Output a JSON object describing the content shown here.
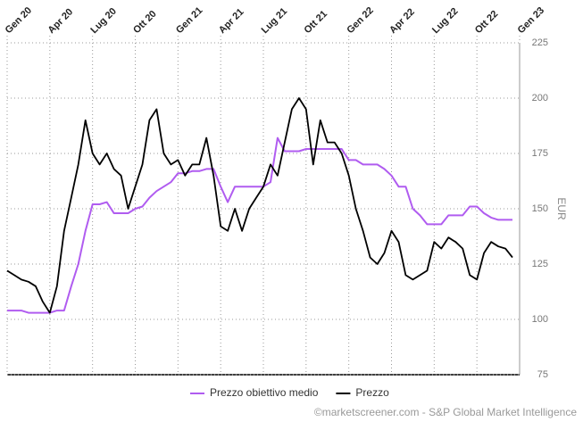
{
  "chart_data": {
    "type": "line",
    "categories": [
      "Gen 20",
      null,
      null,
      null,
      null,
      null,
      "Apr 20",
      null,
      null,
      null,
      null,
      null,
      "Lug 20",
      null,
      null,
      null,
      null,
      null,
      "Ott 20",
      null,
      null,
      null,
      null,
      null,
      "Gen 21",
      null,
      null,
      null,
      null,
      null,
      "Apr 21",
      null,
      null,
      null,
      null,
      null,
      "Lug 21",
      null,
      null,
      null,
      null,
      null,
      "Ott 21",
      null,
      null,
      null,
      null,
      null,
      "Gen 22",
      null,
      null,
      null,
      null,
      null,
      "Apr 22",
      null,
      null,
      null,
      null,
      null,
      "Lug 22",
      null,
      null,
      null,
      null,
      null,
      "Ott 22",
      null,
      null,
      null,
      null,
      null,
      "Gen 23"
    ],
    "series": [
      {
        "name": "Prezzo obiettivo medio",
        "color": "#b05cf0",
        "values": [
          104,
          104,
          104,
          103,
          103,
          103,
          103,
          104,
          104,
          115,
          125,
          140,
          152,
          152,
          153,
          148,
          148,
          148,
          150,
          151,
          155,
          158,
          160,
          162,
          166,
          166,
          167,
          167,
          168,
          168,
          160,
          153,
          160,
          160,
          160,
          160,
          160,
          162,
          182,
          176,
          176,
          176,
          177,
          177,
          177,
          177,
          177,
          177,
          172,
          172,
          170,
          170,
          170,
          168,
          165,
          160,
          160,
          150,
          147,
          143,
          143,
          143,
          147,
          147,
          147,
          151,
          151,
          148,
          146,
          145,
          145,
          145,
          null
        ]
      },
      {
        "name": "Prezzo",
        "color": "#000000",
        "values": [
          122,
          120,
          118,
          117,
          115,
          108,
          103,
          115,
          140,
          155,
          170,
          190,
          175,
          170,
          175,
          168,
          165,
          150,
          160,
          170,
          190,
          195,
          175,
          170,
          172,
          165,
          170,
          170,
          182,
          165,
          142,
          140,
          150,
          140,
          150,
          155,
          160,
          170,
          165,
          180,
          195,
          200,
          195,
          170,
          190,
          180,
          180,
          175,
          165,
          150,
          140,
          128,
          125,
          130,
          140,
          135,
          120,
          118,
          120,
          122,
          135,
          132,
          137,
          135,
          132,
          120,
          118,
          130,
          135,
          133,
          132,
          128,
          null
        ]
      }
    ],
    "y_label": "EUR",
    "ylim": [
      75,
      225
    ],
    "yticks": [
      75,
      100,
      125,
      150,
      175,
      200,
      225
    ],
    "grid": true,
    "legend": "bottom",
    "credit": "©marketscreener.com - S&P Global Market Intelligence"
  }
}
